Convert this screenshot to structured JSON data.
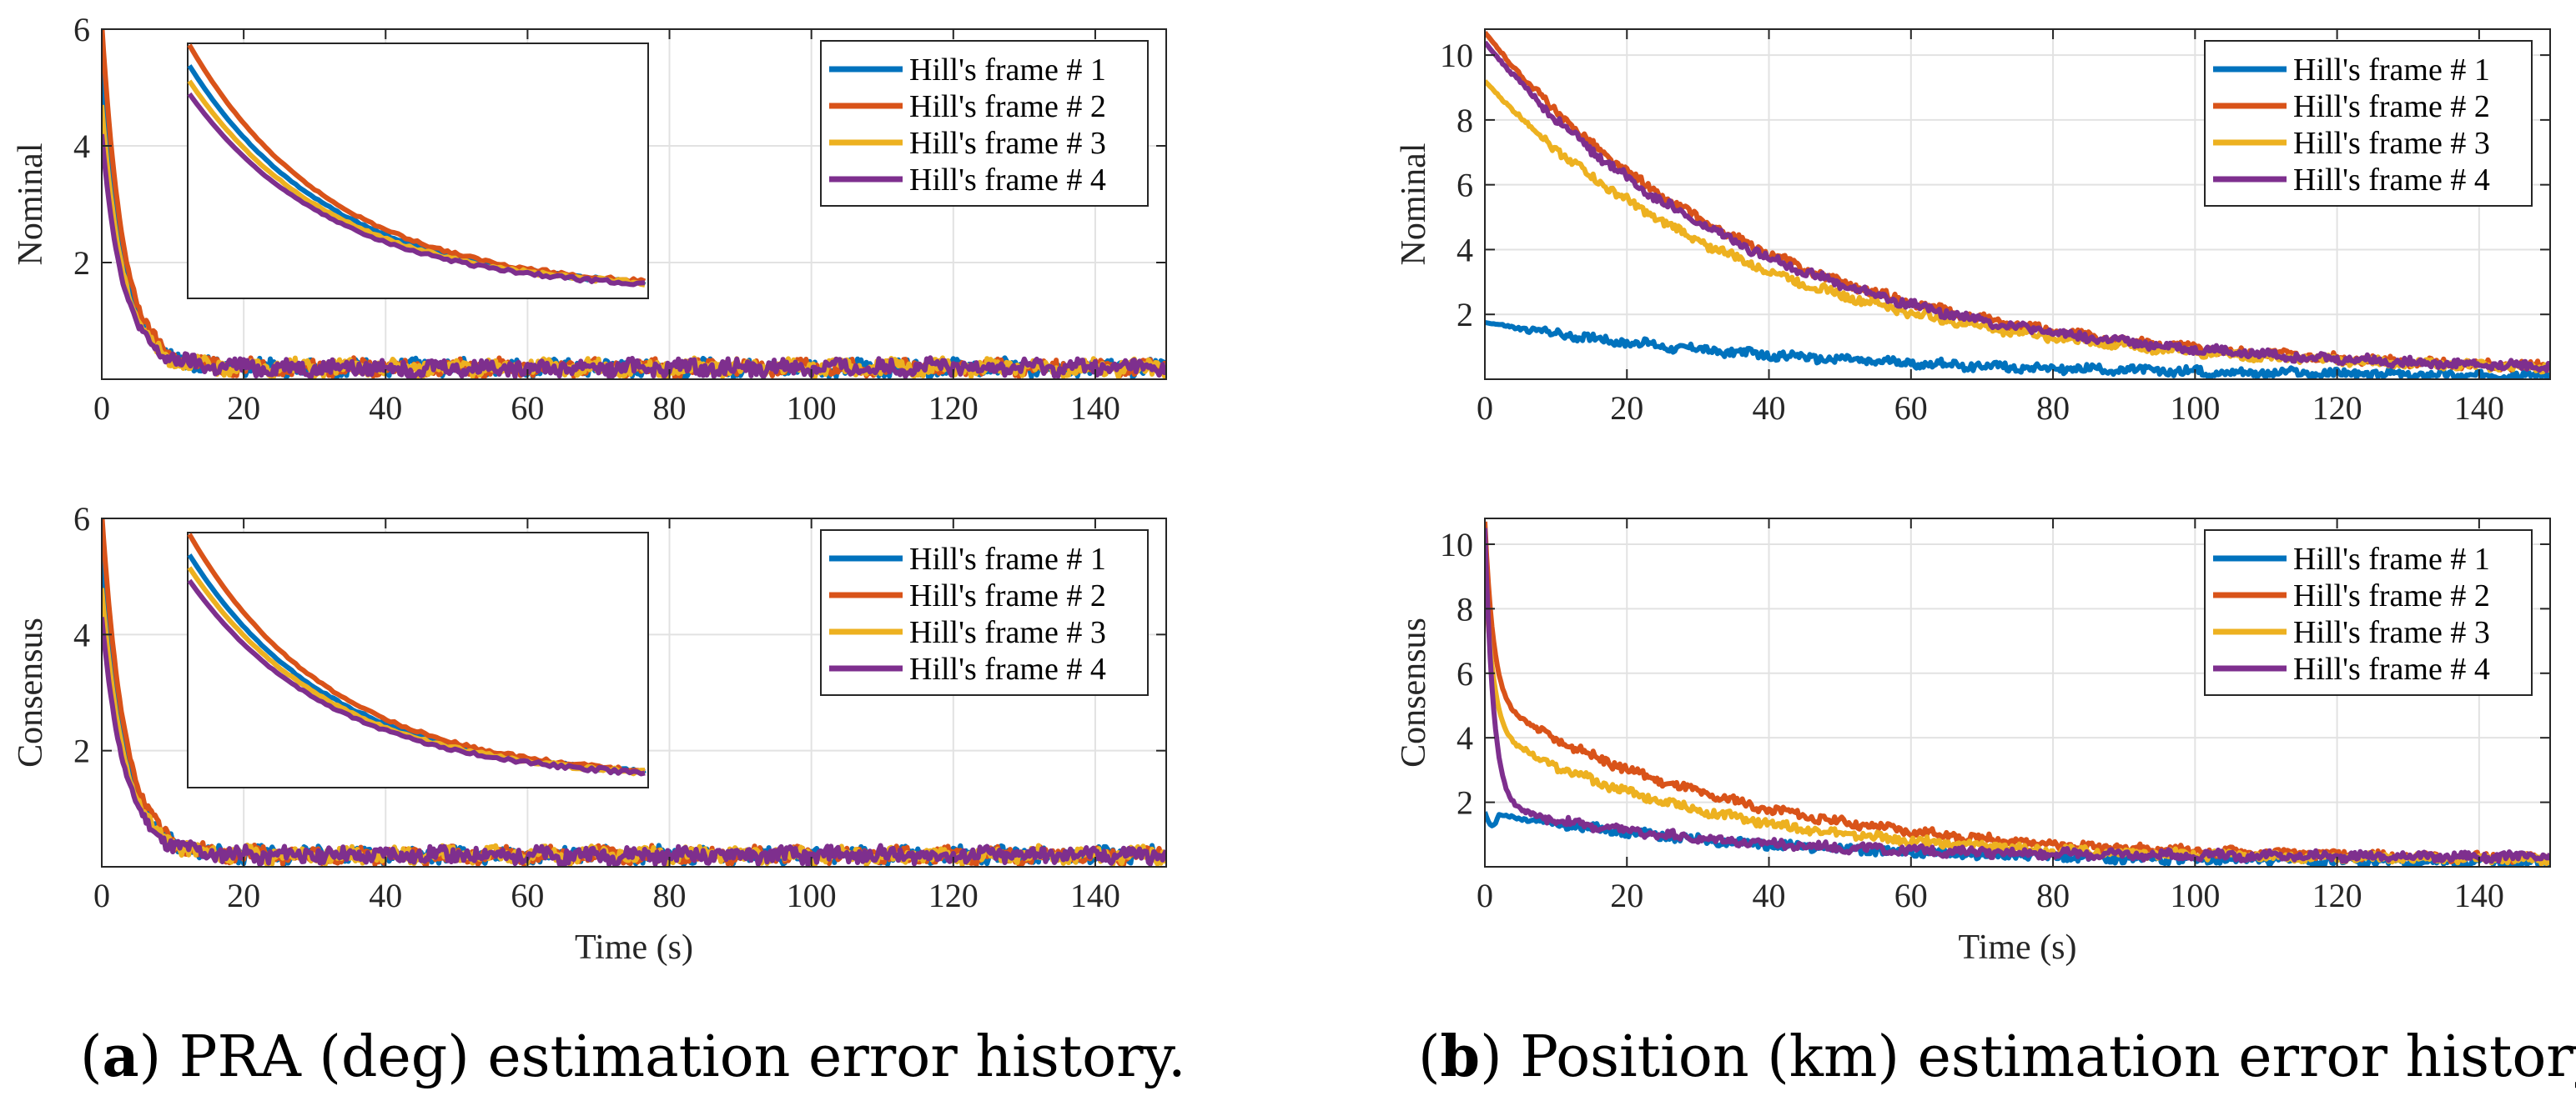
{
  "chart_data": [
    {
      "id": "a-nominal",
      "type": "line",
      "ylabel": "Nominal",
      "xlabel": "",
      "xlim": [
        0,
        150
      ],
      "ylim": [
        0,
        6
      ],
      "xticks": [
        0,
        20,
        40,
        60,
        80,
        100,
        120,
        140
      ],
      "yticks": [
        2,
        4,
        6
      ],
      "inset": true,
      "series": [
        {
          "name": "Hill's frame # 1",
          "color": "#0072BD",
          "start": 5.1,
          "tau": 3.0,
          "floor": 0.2
        },
        {
          "name": "Hill's frame # 2",
          "color": "#D95319",
          "start": 5.9,
          "tau": 3.0,
          "floor": 0.2
        },
        {
          "name": "Hill's frame # 3",
          "color": "#EDB120",
          "start": 4.5,
          "tau": 3.0,
          "floor": 0.2
        },
        {
          "name": "Hill's frame # 4",
          "color": "#7E2F8E",
          "start": 4.0,
          "tau": 3.0,
          "floor": 0.2
        }
      ]
    },
    {
      "id": "b-nominal",
      "type": "line",
      "ylabel": "Nominal",
      "xlabel": "",
      "xlim": [
        0,
        150
      ],
      "ylim": [
        0,
        10.8
      ],
      "xticks": [
        0,
        20,
        40,
        60,
        80,
        100,
        120,
        140
      ],
      "yticks": [
        2,
        4,
        6,
        8,
        10
      ],
      "inset": false,
      "series": [
        {
          "name": "Hill's frame # 1",
          "color": "#0072BD",
          "start": 1.7,
          "tau": 45,
          "floor": 0.05
        },
        {
          "name": "Hill's frame # 2",
          "color": "#D95319",
          "start": 10.5,
          "tau": 38,
          "floor": 0.2
        },
        {
          "name": "Hill's frame # 3",
          "color": "#EDB120",
          "start": 9.0,
          "tau": 38,
          "floor": 0.2
        },
        {
          "name": "Hill's frame # 4",
          "color": "#7E2F8E",
          "start": 10.2,
          "tau": 38,
          "floor": 0.2
        }
      ]
    },
    {
      "id": "a-consensus",
      "type": "line",
      "ylabel": "Consensus",
      "xlabel": "Time (s)",
      "xlim": [
        0,
        150
      ],
      "ylim": [
        0,
        6
      ],
      "xticks": [
        0,
        20,
        40,
        60,
        80,
        100,
        120,
        140
      ],
      "yticks": [
        2,
        4,
        6
      ],
      "inset": true,
      "series": [
        {
          "name": "Hill's frame # 1",
          "color": "#0072BD",
          "start": 5.1,
          "tau": 3.2,
          "floor": 0.2
        },
        {
          "name": "Hill's frame # 2",
          "color": "#D95319",
          "start": 5.9,
          "tau": 3.2,
          "floor": 0.2
        },
        {
          "name": "Hill's frame # 3",
          "color": "#EDB120",
          "start": 4.6,
          "tau": 3.2,
          "floor": 0.2
        },
        {
          "name": "Hill's frame # 4",
          "color": "#7E2F8E",
          "start": 4.1,
          "tau": 3.2,
          "floor": 0.2
        }
      ]
    },
    {
      "id": "b-consensus",
      "type": "line",
      "ylabel": "Consensus",
      "xlabel": "Time (s)",
      "xlim": [
        0,
        150
      ],
      "ylim": [
        0,
        10.8
      ],
      "xticks": [
        0,
        20,
        40,
        60,
        80,
        100,
        120,
        140
      ],
      "yticks": [
        2,
        4,
        6,
        8,
        10
      ],
      "inset": false,
      "series": [
        {
          "name": "Hill's frame # 1",
          "color": "#0072BD",
          "start": 1.6,
          "tau": 40,
          "floor": 0.1,
          "hump": true
        },
        {
          "name": "Hill's frame # 2",
          "color": "#D95319",
          "start": 5.0,
          "tau": 35,
          "floor": 0.2,
          "spike": 10.5
        },
        {
          "name": "Hill's frame # 3",
          "color": "#EDB120",
          "start": 4.0,
          "tau": 32,
          "floor": 0.2,
          "spike": 9.0
        },
        {
          "name": "Hill's frame # 4",
          "color": "#7E2F8E",
          "start": 1.6,
          "tau": 30,
          "floor": 0.3,
          "spike": 10.2
        }
      ]
    }
  ],
  "captions": {
    "a_label": "a",
    "a_text": ") PRA (deg) estimation error history.",
    "b_label": "b",
    "b_text": ") Position (km) estimation error history."
  }
}
